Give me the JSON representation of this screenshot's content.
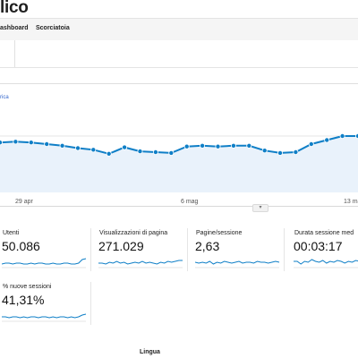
{
  "header": {
    "title": "lico",
    "tabs": [
      "ashboard",
      "Scorciatoia"
    ]
  },
  "chart": {
    "metric_link": "rica",
    "x_labels": [
      "29 apr",
      "6 mag",
      "13 ma"
    ],
    "accent": "#0f7fc7",
    "fill": "#e9f2fb",
    "chart_data": {
      "type": "area",
      "title": "",
      "xlabel": "",
      "ylabel": "",
      "values": [
        62,
        63,
        62,
        60,
        58,
        55,
        53,
        48,
        56,
        51,
        50,
        49,
        57,
        58,
        57,
        58,
        58,
        52,
        49,
        50,
        60,
        65,
        70,
        70
      ],
      "y_range": [
        0,
        100
      ],
      "grid": true
    }
  },
  "collapse_icon": "▾",
  "metrics": [
    {
      "label": "Utenti",
      "value": "50.086"
    },
    {
      "label": "Visualizzazioni di pagina",
      "value": "271.029"
    },
    {
      "label": "Pagine/sessione",
      "value": "2,63"
    },
    {
      "label": "Durata sessione med",
      "value": "00:03:17"
    },
    {
      "label": "% nuove sessioni",
      "value": "41,31%"
    }
  ],
  "footer": {
    "label": "Lingua"
  }
}
